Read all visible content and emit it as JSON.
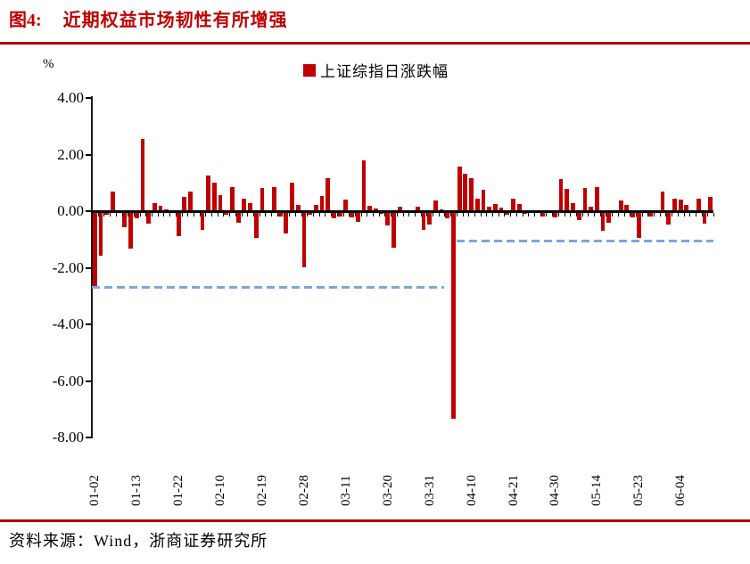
{
  "title": {
    "prefix": "图4:",
    "text": "近期权益市场韧性有所增强"
  },
  "footer": {
    "source_label": "资料来源：Wind，浙商证券研究所"
  },
  "colors": {
    "bar": "#C00000",
    "title": "#C00000",
    "rule": "#B00000",
    "reference_line": "#7BA7DC",
    "axis": "#000000"
  },
  "chart_data": {
    "type": "bar",
    "title": "上证综指日涨跌幅",
    "unit_label": "%",
    "legend": [
      {
        "label": "上证综指日涨跌幅",
        "color": "#C00000"
      }
    ],
    "legend_position": "top-center",
    "grid": false,
    "ylim": [
      -8,
      4
    ],
    "ytick_labels": [
      "4.00",
      "2.00",
      "0.00",
      "-2.00",
      "-4.00",
      "-6.00",
      "-8.00"
    ],
    "xtick_labels": [
      "01-02",
      "01-13",
      "01-22",
      "02-10",
      "02-19",
      "02-28",
      "03-11",
      "03-20",
      "03-31",
      "04-10",
      "04-21",
      "04-30",
      "05-14",
      "05-23",
      "06-04"
    ],
    "xtick_every": 7,
    "categories": [
      "01-02",
      "01-03",
      "01-06",
      "01-07",
      "01-08",
      "01-09",
      "01-10",
      "01-13",
      "01-14",
      "01-15",
      "01-16",
      "01-17",
      "01-20",
      "01-21",
      "01-22",
      "01-23",
      "01-24",
      "01-27",
      "02-05",
      "02-06",
      "02-07",
      "02-10",
      "02-11",
      "02-12",
      "02-13",
      "02-14",
      "02-17",
      "02-18",
      "02-19",
      "02-20",
      "02-21",
      "02-24",
      "02-25",
      "02-26",
      "02-27",
      "02-28",
      "03-03",
      "03-04",
      "03-05",
      "03-06",
      "03-07",
      "03-10",
      "03-11",
      "03-12",
      "03-13",
      "03-14",
      "03-17",
      "03-18",
      "03-19",
      "03-20",
      "03-21",
      "03-24",
      "03-25",
      "03-26",
      "03-27",
      "03-28",
      "03-31",
      "04-01",
      "04-02",
      "04-03",
      "04-07",
      "04-08",
      "04-09",
      "04-10",
      "04-11",
      "04-14",
      "04-15",
      "04-16",
      "04-17",
      "04-18",
      "04-21",
      "04-22",
      "04-23",
      "04-24",
      "04-25",
      "04-28",
      "04-29",
      "04-30",
      "05-06",
      "05-07",
      "05-08",
      "05-09",
      "05-12",
      "05-13",
      "05-14",
      "05-15",
      "05-16",
      "05-19",
      "05-20",
      "05-21",
      "05-22",
      "05-23",
      "05-26",
      "05-27",
      "05-28",
      "05-29",
      "05-30",
      "06-03",
      "06-04",
      "06-05",
      "06-06",
      "06-09",
      "06-10",
      "06-11"
    ],
    "values": [
      -2.66,
      -1.57,
      -0.14,
      0.71,
      0.02,
      -0.58,
      -1.33,
      -0.25,
      2.54,
      -0.43,
      0.28,
      0.18,
      0.08,
      -0.05,
      -0.89,
      0.51,
      0.7,
      -0.06,
      -0.65,
      1.27,
      1.01,
      0.56,
      -0.12,
      0.85,
      -0.42,
      0.43,
      0.27,
      -0.93,
      0.81,
      -0.02,
      0.85,
      -0.18,
      -0.8,
      1.02,
      0.23,
      -1.98,
      -0.12,
      0.22,
      0.53,
      1.17,
      -0.25,
      -0.19,
      0.41,
      -0.23,
      -0.39,
      1.81,
      0.19,
      0.11,
      -0.1,
      -0.51,
      -1.29,
      0.15,
      0.0,
      -0.04,
      0.15,
      -0.67,
      -0.46,
      0.38,
      0.05,
      -0.24,
      -7.34,
      1.58,
      1.31,
      1.16,
      0.45,
      0.76,
      0.15,
      0.26,
      0.13,
      -0.11,
      0.45,
      0.25,
      -0.1,
      0.03,
      -0.07,
      -0.2,
      -0.05,
      -0.23,
      1.13,
      0.8,
      0.28,
      -0.3,
      0.82,
      0.17,
      0.86,
      -0.68,
      -0.4,
      0.0,
      0.38,
      0.21,
      -0.22,
      -0.94,
      -0.05,
      -0.18,
      0.0,
      0.7,
      -0.47,
      0.43,
      0.42,
      0.23,
      0.04,
      0.43,
      -0.44,
      0.52
    ],
    "reference_lines": [
      {
        "y": -2.7,
        "from": "01-02",
        "to": "04-02",
        "style": "dashed",
        "color": "#7BA7DC"
      },
      {
        "y": -1.05,
        "from": "04-08",
        "to": "06-11",
        "style": "dashed",
        "color": "#7BA7DC"
      }
    ]
  }
}
